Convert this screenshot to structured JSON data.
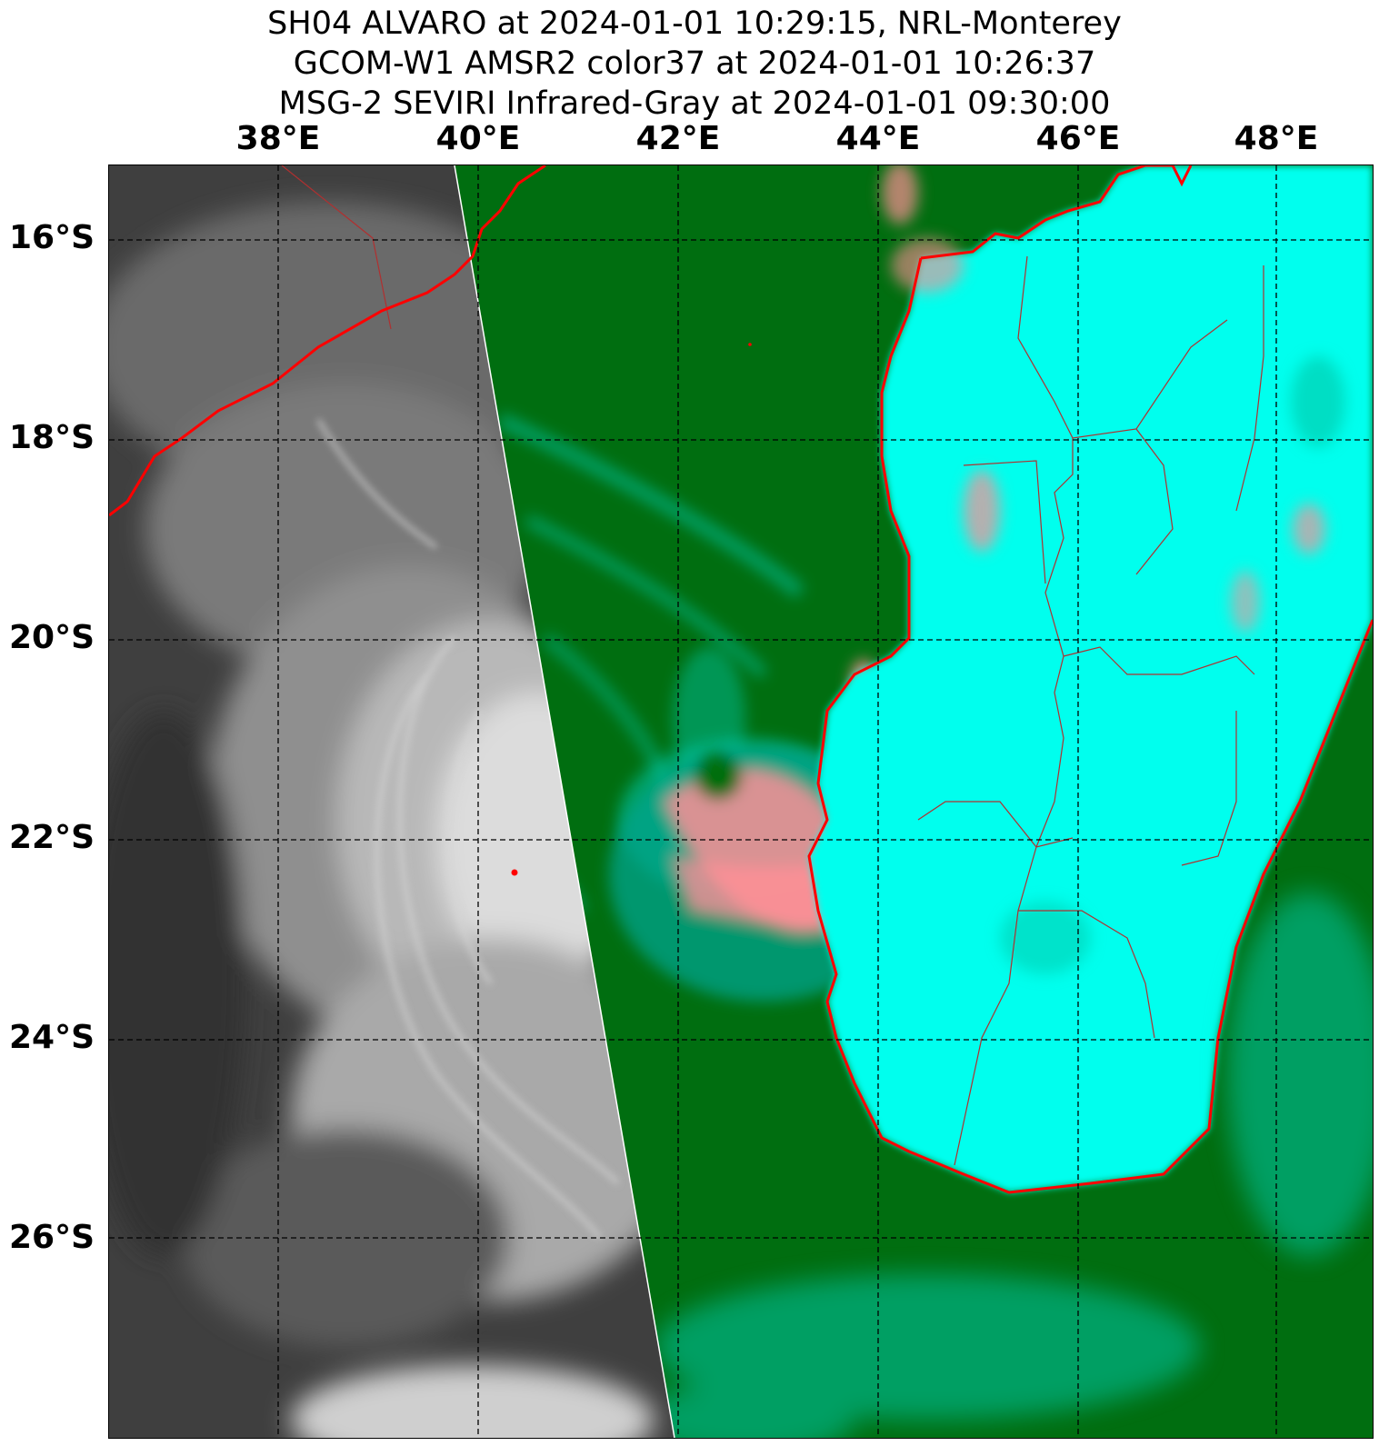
{
  "title": {
    "line1": "SH04 ALVARO at 2024-01-01 10:29:15, NRL-Monterey",
    "line2": "GCOM-W1 AMSR2 color37 at 2024-01-01 10:26:37",
    "line3": "MSG-2 SEVIRI Infrared-Gray at 2024-01-01 09:30:00"
  },
  "lon_labels": [
    "38°E",
    "40°E",
    "42°E",
    "44°E",
    "46°E",
    "48°E"
  ],
  "lat_labels": [
    "16°S",
    "18°S",
    "20°S",
    "22°S",
    "24°S",
    "26°S"
  ],
  "colors": {
    "ir_dark": "#3f3f3f",
    "ir_cloud": "#e6e6e6",
    "ocean_green": "#006e10",
    "land_cyan": "#00ffee",
    "rain_pink": "#ff8f96",
    "coastline": "#ff0000",
    "border": "#b03030",
    "grid": "#000000"
  }
}
